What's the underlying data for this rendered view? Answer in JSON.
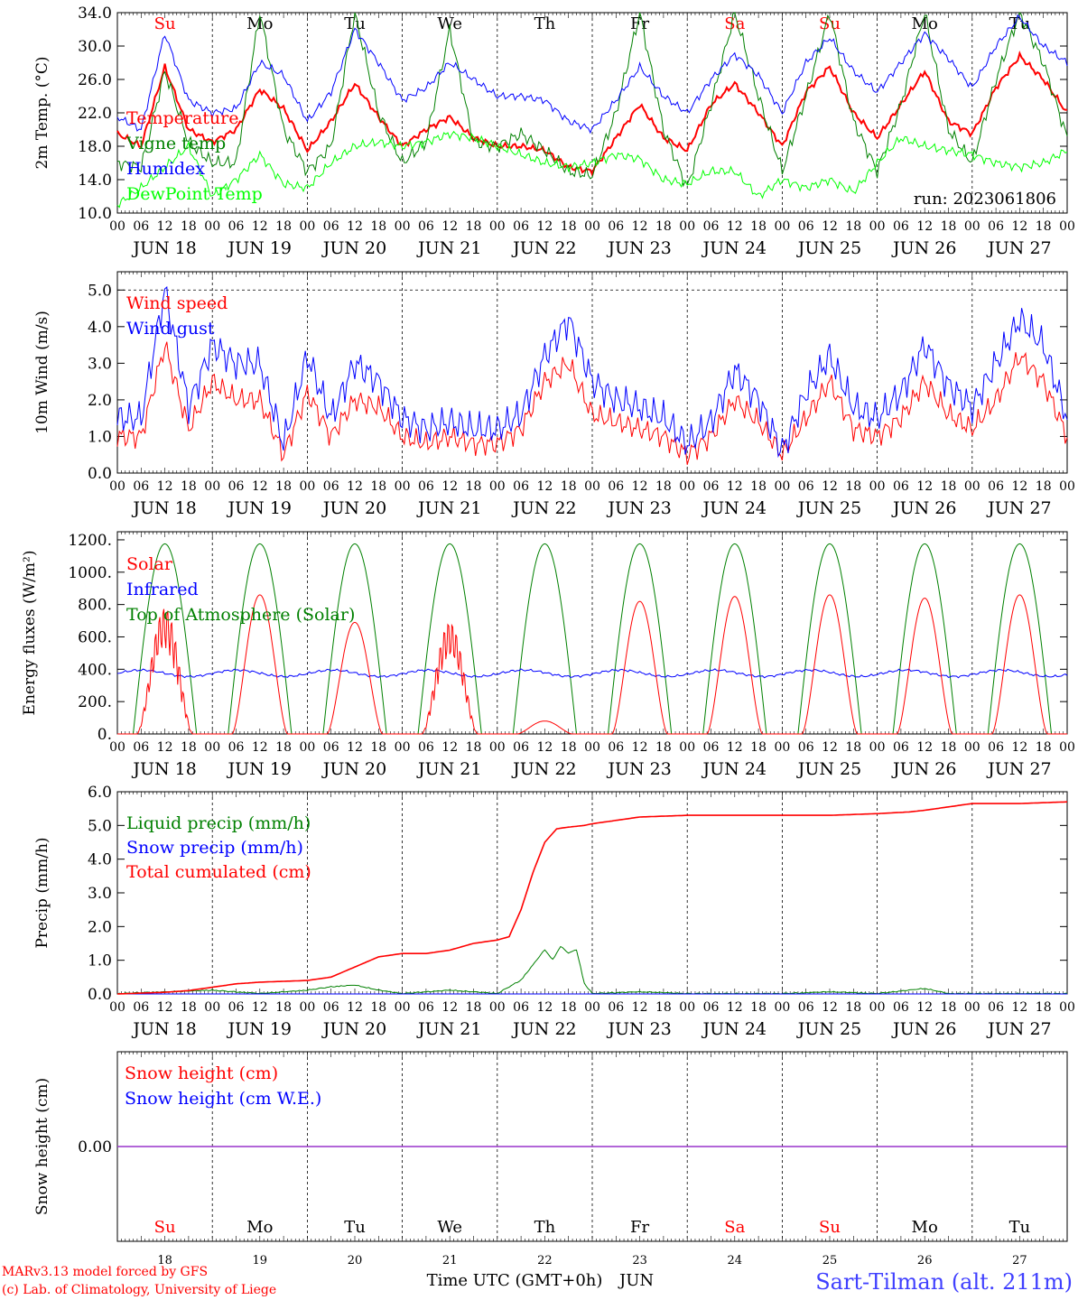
{
  "chart_data": [
    {
      "type": "line",
      "ylabel": "2m Temp. (°C)",
      "ylim": [
        10.0,
        34.0
      ],
      "yticks": [
        "10.0",
        "14.0",
        "18.0",
        "22.0",
        "26.0",
        "30.0",
        "34.0"
      ],
      "annotation": "run: 2023061806",
      "day_labels_top": [
        {
          "text": "Su",
          "color": "#ff0000"
        },
        {
          "text": "Mo",
          "color": "#000000"
        },
        {
          "text": "Tu",
          "color": "#000000"
        },
        {
          "text": "We",
          "color": "#000000"
        },
        {
          "text": "Th",
          "color": "#000000"
        },
        {
          "text": "Fr",
          "color": "#000000"
        },
        {
          "text": "Sa",
          "color": "#ff0000"
        },
        {
          "text": "Su",
          "color": "#ff0000"
        },
        {
          "text": "Mo",
          "color": "#000000"
        },
        {
          "text": "Tu",
          "color": "#000000"
        }
      ],
      "series": [
        {
          "name": "Temperature",
          "color": "#ff0000",
          "x": [
            0,
            6,
            12,
            18,
            24,
            30,
            36,
            42,
            48,
            54,
            60,
            66,
            72,
            78,
            84,
            90,
            96,
            102,
            108,
            114,
            120,
            126,
            132,
            138,
            144,
            150,
            156,
            162,
            168,
            174,
            180,
            186,
            192,
            198,
            204,
            210,
            216,
            222,
            228,
            234,
            240
          ],
          "y": [
            19.5,
            18.0,
            27.5,
            20.0,
            18.5,
            20.0,
            24.8,
            22.5,
            17.5,
            21.0,
            25.5,
            21.5,
            18.0,
            20.0,
            21.5,
            19.0,
            18.0,
            18.0,
            17.5,
            15.5,
            15.0,
            19.0,
            23.0,
            19.0,
            17.5,
            23.0,
            25.5,
            22.0,
            18.0,
            24.5,
            27.5,
            22.0,
            19.0,
            23.0,
            27.0,
            21.0,
            19.5,
            25.0,
            28.8,
            26.0,
            22.0
          ]
        },
        {
          "name": "Vigne temp",
          "color": "#008000",
          "x": [
            0,
            6,
            12,
            18,
            24,
            30,
            36,
            42,
            48,
            54,
            60,
            66,
            72,
            78,
            84,
            90,
            96,
            102,
            108,
            114,
            120,
            126,
            132,
            138,
            144,
            150,
            156,
            162,
            168,
            174,
            180,
            186,
            192,
            198,
            204,
            210,
            216,
            222,
            228,
            234,
            240
          ],
          "y": [
            16.0,
            15.5,
            27.0,
            18.5,
            16.0,
            16.0,
            34.0,
            20.0,
            15.0,
            18.0,
            34.0,
            22.0,
            16.0,
            18.5,
            32.0,
            18.5,
            18.0,
            19.5,
            17.5,
            15.0,
            14.5,
            22.0,
            34.0,
            20.0,
            13.0,
            23.0,
            34.0,
            24.0,
            15.0,
            24.0,
            34.0,
            21.0,
            15.0,
            23.0,
            34.0,
            20.0,
            16.0,
            26.0,
            34.0,
            28.0,
            19.0
          ]
        },
        {
          "name": "Humidex",
          "color": "#0000ff",
          "x": [
            0,
            6,
            12,
            18,
            24,
            30,
            36,
            42,
            48,
            54,
            60,
            66,
            72,
            78,
            84,
            90,
            96,
            102,
            108,
            114,
            120,
            126,
            132,
            138,
            144,
            150,
            156,
            162,
            168,
            174,
            180,
            186,
            192,
            198,
            204,
            210,
            216,
            222,
            228,
            234,
            240
          ],
          "y": [
            21.5,
            20.0,
            31.5,
            23.5,
            22.0,
            22.5,
            28.0,
            26.5,
            21.0,
            24.5,
            32.0,
            28.0,
            23.5,
            25.0,
            28.0,
            26.0,
            24.0,
            24.0,
            23.5,
            21.0,
            20.0,
            23.5,
            27.5,
            24.0,
            22.0,
            26.0,
            29.0,
            26.5,
            22.0,
            28.0,
            31.0,
            27.0,
            24.5,
            28.0,
            31.5,
            28.5,
            25.0,
            30.0,
            33.5,
            30.0,
            28.0
          ]
        },
        {
          "name": "DewPoint Temp",
          "color": "#00ff00",
          "x": [
            0,
            6,
            12,
            18,
            24,
            30,
            36,
            42,
            48,
            54,
            60,
            66,
            72,
            78,
            84,
            90,
            96,
            102,
            108,
            114,
            120,
            126,
            132,
            138,
            144,
            150,
            156,
            162,
            168,
            174,
            180,
            186,
            192,
            198,
            204,
            210,
            216,
            222,
            228,
            234,
            240
          ],
          "y": [
            11.0,
            13.0,
            15.5,
            18.0,
            12.0,
            14.0,
            17.0,
            13.5,
            13.0,
            16.0,
            18.0,
            18.5,
            18.0,
            18.5,
            19.5,
            19.0,
            18.0,
            17.0,
            16.0,
            15.5,
            16.0,
            17.0,
            16.5,
            14.0,
            13.5,
            15.0,
            15.0,
            12.0,
            14.0,
            13.0,
            14.0,
            12.5,
            16.0,
            19.0,
            18.0,
            17.5,
            17.0,
            16.0,
            15.5,
            16.0,
            17.5
          ]
        }
      ]
    },
    {
      "type": "line",
      "ylabel": "10m Wind (m/s)",
      "ylim": [
        0.0,
        5.5
      ],
      "yticks": [
        "0.0",
        "1.0",
        "2.0",
        "3.0",
        "4.0",
        "5.0"
      ],
      "series": [
        {
          "name": "Wind speed",
          "color": "#ff0000",
          "x": [
            0,
            6,
            12,
            18,
            24,
            30,
            36,
            42,
            48,
            54,
            60,
            66,
            72,
            78,
            84,
            90,
            96,
            102,
            108,
            114,
            120,
            126,
            132,
            138,
            144,
            150,
            156,
            162,
            168,
            174,
            180,
            186,
            192,
            198,
            204,
            210,
            216,
            222,
            228,
            234,
            240
          ],
          "y": [
            1.0,
            1.0,
            3.5,
            1.2,
            2.5,
            2.0,
            2.0,
            0.5,
            2.2,
            1.0,
            2.0,
            1.8,
            1.0,
            0.8,
            1.0,
            0.8,
            0.8,
            1.2,
            2.5,
            3.0,
            1.6,
            1.4,
            1.2,
            1.0,
            0.5,
            1.0,
            2.0,
            1.4,
            0.5,
            1.5,
            2.5,
            1.2,
            1.0,
            1.5,
            2.5,
            1.6,
            1.2,
            2.0,
            3.2,
            2.5,
            1.0
          ]
        },
        {
          "name": "Wind gust",
          "color": "#0000ff",
          "x": [
            0,
            6,
            12,
            18,
            24,
            30,
            36,
            42,
            48,
            54,
            60,
            66,
            72,
            78,
            84,
            90,
            96,
            102,
            108,
            114,
            120,
            126,
            132,
            138,
            144,
            150,
            156,
            162,
            168,
            174,
            180,
            186,
            192,
            198,
            204,
            210,
            216,
            222,
            228,
            234,
            240
          ],
          "y": [
            1.5,
            1.5,
            5.0,
            1.8,
            3.5,
            3.0,
            3.0,
            0.8,
            3.2,
            1.5,
            3.0,
            2.5,
            1.5,
            1.2,
            1.4,
            1.2,
            1.2,
            1.6,
            3.2,
            4.2,
            2.5,
            2.0,
            1.8,
            1.5,
            0.8,
            1.4,
            2.8,
            2.0,
            0.6,
            2.2,
            3.2,
            1.8,
            1.5,
            2.2,
            3.5,
            2.4,
            1.8,
            3.0,
            4.2,
            3.5,
            1.5
          ]
        }
      ]
    },
    {
      "type": "line",
      "ylabel": "Energy fluxes (W/m²)",
      "ylim": [
        0,
        1250
      ],
      "yticks": [
        "0.",
        "200.",
        "400.",
        "600.",
        "800.",
        "1000.",
        "1200."
      ],
      "toa_peak": 1175,
      "solar_peaks": [
        790,
        860,
        690,
        700,
        80,
        820,
        850,
        860,
        840,
        860
      ],
      "infrared_mean": 375,
      "series": [
        {
          "name": "Solar",
          "color": "#ff0000"
        },
        {
          "name": "Infrared",
          "color": "#0000ff"
        },
        {
          "name": "Top of Atmosphere (Solar)",
          "color": "#008000"
        }
      ]
    },
    {
      "type": "line",
      "ylabel": "Precip (mm/h)",
      "ylim": [
        0.0,
        6.0
      ],
      "yticks": [
        "0.0",
        "1.0",
        "2.0",
        "3.0",
        "4.0",
        "5.0",
        "6.0"
      ],
      "series": [
        {
          "name": "Liquid precip (mm/h)",
          "color": "#008000",
          "x": [
            0,
            12,
            24,
            36,
            48,
            54,
            60,
            66,
            72,
            84,
            96,
            102,
            108,
            110,
            112,
            114,
            116,
            118,
            120,
            132,
            144,
            156,
            168,
            180,
            192,
            200,
            204,
            210,
            216,
            228,
            240
          ],
          "y": [
            0.0,
            0.05,
            0.1,
            0.0,
            0.1,
            0.2,
            0.25,
            0.1,
            0.0,
            0.1,
            0.0,
            0.4,
            1.3,
            1.0,
            1.4,
            1.2,
            1.3,
            0.3,
            0.0,
            0.05,
            0.0,
            0.0,
            0.0,
            0.05,
            0.0,
            0.1,
            0.15,
            0.0,
            0.0,
            0.0,
            0.0
          ]
        },
        {
          "name": "Snow precip (mm/h)",
          "color": "#0000ff",
          "x": [
            0,
            240
          ],
          "y": [
            0.0,
            0.0
          ]
        },
        {
          "name": "Total cumulated (cm)",
          "color": "#ff0000",
          "x": [
            0,
            12,
            18,
            24,
            30,
            36,
            48,
            54,
            60,
            66,
            72,
            78,
            84,
            90,
            96,
            99,
            102,
            105,
            108,
            111,
            114,
            118,
            120,
            126,
            132,
            144,
            156,
            168,
            180,
            192,
            200,
            204,
            210,
            216,
            228,
            240
          ],
          "y": [
            0.0,
            0.05,
            0.1,
            0.2,
            0.3,
            0.35,
            0.4,
            0.5,
            0.8,
            1.1,
            1.2,
            1.2,
            1.3,
            1.5,
            1.6,
            1.7,
            2.5,
            3.6,
            4.5,
            4.9,
            4.95,
            5.0,
            5.05,
            5.15,
            5.25,
            5.3,
            5.3,
            5.3,
            5.3,
            5.35,
            5.4,
            5.45,
            5.55,
            5.65,
            5.65,
            5.7
          ]
        }
      ]
    },
    {
      "type": "line",
      "ylabel": "Snow height (cm)",
      "ytick": "0.00",
      "series": [
        {
          "name": "Snow height (cm)",
          "color": "#ff0000",
          "x": [
            0,
            240
          ],
          "y": [
            0.0,
            0.0
          ]
        },
        {
          "name": "Snow height (cm W.E.)",
          "color": "#0000ff",
          "x": [
            0,
            240
          ],
          "y": [
            0.0,
            0.0
          ]
        }
      ],
      "day_labels_bottom": [
        {
          "text": "Su",
          "color": "#ff0000"
        },
        {
          "text": "Mo",
          "color": "#000000"
        },
        {
          "text": "Tu",
          "color": "#000000"
        },
        {
          "text": "We",
          "color": "#000000"
        },
        {
          "text": "Th",
          "color": "#000000"
        },
        {
          "text": "Fr",
          "color": "#000000"
        },
        {
          "text": "Sa",
          "color": "#ff0000"
        },
        {
          "text": "Su",
          "color": "#ff0000"
        },
        {
          "text": "Mo",
          "color": "#000000"
        },
        {
          "text": "Tu",
          "color": "#000000"
        }
      ],
      "day_numbers": [
        "18",
        "19",
        "20",
        "21",
        "22",
        "23",
        "24",
        "25",
        "26",
        "27"
      ],
      "xlabel": "Time UTC (GMT+0h)",
      "month": "JUN"
    }
  ],
  "x_axis": {
    "hour_ticks": [
      "00",
      "06",
      "12",
      "18"
    ],
    "final_tick": "00",
    "date_labels": [
      "JUN 18",
      "JUN 19",
      "JUN 20",
      "JUN 21",
      "JUN 22",
      "JUN 23",
      "JUN 24",
      "JUN 25",
      "JUN 26",
      "JUN 27"
    ]
  },
  "footer": {
    "credit_line1": "MARv3.13 model forced by GFS",
    "credit_line2": "(c) Lab. of Climatology, University of Liege",
    "station": "Sart-Tilman (alt. 211m)"
  }
}
